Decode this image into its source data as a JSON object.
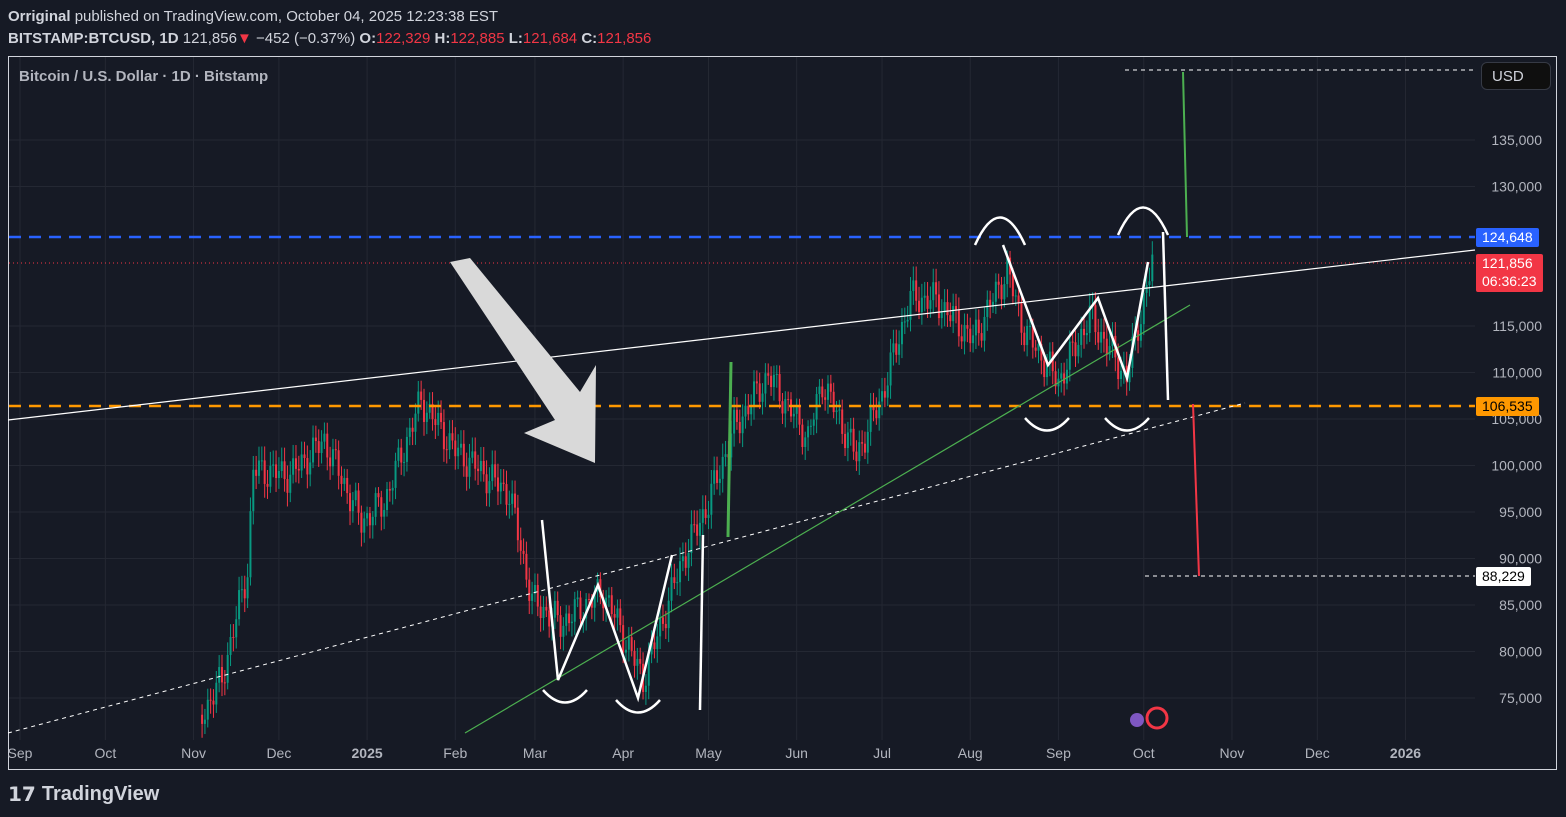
{
  "header": {
    "author": "Orriginal",
    "published": "published on TradingView.com, October 04, 2025 12:23:38 EST",
    "symbol": "BITSTAMP:BTCUSD, 1D",
    "last": "121,856",
    "change": "−452 (−0.37%)",
    "o_label": "O:",
    "o": "122,329",
    "h_label": "H:",
    "h": "122,885",
    "l_label": "L:",
    "l": "121,684",
    "c_label": "C:",
    "c": "121,856"
  },
  "legend": "Bitcoin / U.S. Dollar · 1D · Bitstamp",
  "currency_button": "USD",
  "price_tags": {
    "resistance": "124,648",
    "last": "121,856",
    "countdown": "06:36:23",
    "support": "106,535",
    "target": "88,229"
  },
  "colors": {
    "up": "#089981",
    "down": "#f23645",
    "resistance": "#2962ff",
    "support": "#ff9800",
    "bg": "#161a25"
  },
  "brand": "TradingView",
  "chart_data": {
    "type": "candlestick",
    "y_ticks": [
      "135,000",
      "130,000",
      "115,000",
      "110,000",
      "105,000",
      "100,000",
      "95,000",
      "90,000",
      "85,000",
      "80,000",
      "75,000"
    ],
    "x_ticks": [
      "Sep",
      "Oct",
      "Nov",
      "Dec",
      "2025",
      "Feb",
      "Mar",
      "Apr",
      "May",
      "Jun",
      "Jul",
      "Aug",
      "Sep",
      "Oct",
      "Nov",
      "Dec",
      "2026"
    ],
    "ylim": [
      72000,
      141000
    ],
    "approx_closes": [
      [
        "2024-11-04",
        73200
      ],
      [
        "2024-11-11",
        77000
      ],
      [
        "2024-11-20",
        88800
      ],
      [
        "2024-11-22",
        99500
      ],
      [
        "2024-12-05",
        99000
      ],
      [
        "2024-12-17",
        102700
      ],
      [
        "2024-12-30",
        94000
      ],
      [
        "2025-01-07",
        96000
      ],
      [
        "2025-01-20",
        107000
      ],
      [
        "2025-02-01",
        101600
      ],
      [
        "2025-02-20",
        97000
      ],
      [
        "2025-02-28",
        85500
      ],
      [
        "2025-03-10",
        83000
      ],
      [
        "2025-03-25",
        86500
      ],
      [
        "2025-04-08",
        77000
      ],
      [
        "2025-04-22",
        90000
      ],
      [
        "2025-05-01",
        96000
      ],
      [
        "2025-05-10",
        104000
      ],
      [
        "2025-05-22",
        109700
      ],
      [
        "2025-06-05",
        103000
      ],
      [
        "2025-06-10",
        109000
      ],
      [
        "2025-06-22",
        101000
      ],
      [
        "2025-07-01",
        107500
      ],
      [
        "2025-07-11",
        118000
      ],
      [
        "2025-07-20",
        117800
      ],
      [
        "2025-08-02",
        113500
      ],
      [
        "2025-08-14",
        121000
      ],
      [
        "2025-08-20",
        114500
      ],
      [
        "2025-09-01",
        109000
      ],
      [
        "2025-09-12",
        116000
      ],
      [
        "2025-09-25",
        109500
      ],
      [
        "2025-10-04",
        121856
      ]
    ],
    "levels": [
      124648,
      106535,
      88229
    ]
  }
}
